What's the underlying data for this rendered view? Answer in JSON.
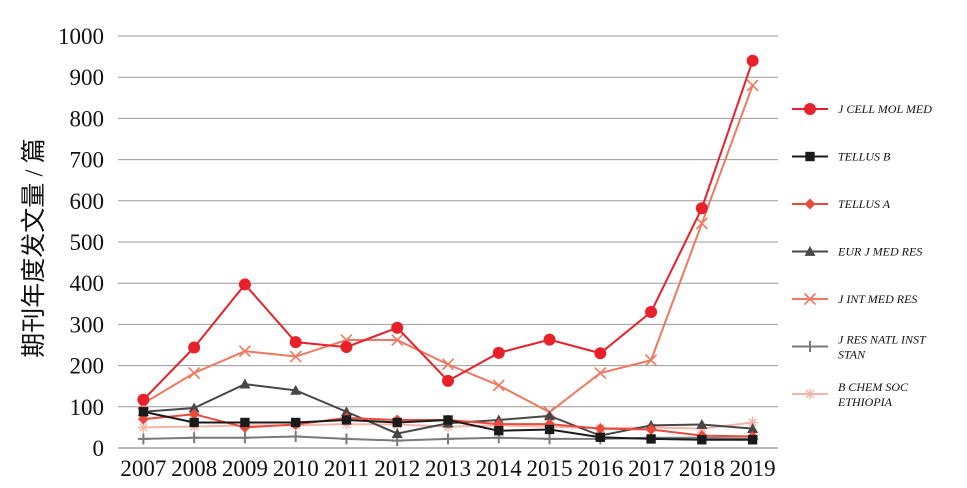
{
  "chart_data": {
    "type": "line",
    "ylabel": "期刊年度发文量 / 篇",
    "xlabel": "",
    "ylim": [
      0,
      1000
    ],
    "yticks": [
      0,
      100,
      200,
      300,
      400,
      500,
      600,
      700,
      800,
      900,
      1000
    ],
    "categories": [
      "2007",
      "2008",
      "2009",
      "2010",
      "2011",
      "2012",
      "2013",
      "2014",
      "2015",
      "2016",
      "2017",
      "2018",
      "2019"
    ],
    "grid": true,
    "legend_position": "right",
    "series": [
      {
        "name": "J CELL MOL MED",
        "color": "#e8202a",
        "marker": "circle",
        "values": [
          117,
          244,
          397,
          257,
          245,
          292,
          163,
          231,
          263,
          230,
          330,
          582,
          940
        ]
      },
      {
        "name": "TELLUS B",
        "color": "#1a1a1a",
        "marker": "square",
        "values": [
          88,
          62,
          62,
          62,
          68,
          62,
          68,
          42,
          45,
          26,
          22,
          20,
          20
        ]
      },
      {
        "name": "TELLUS A",
        "color": "#ea4a3e",
        "marker": "diamond",
        "values": [
          70,
          82,
          50,
          57,
          73,
          68,
          68,
          58,
          58,
          47,
          45,
          30,
          28
        ]
      },
      {
        "name": "EUR J MED RES",
        "color": "#474747",
        "marker": "triangle",
        "values": [
          88,
          97,
          155,
          140,
          88,
          35,
          60,
          68,
          78,
          30,
          55,
          57,
          47
        ]
      },
      {
        "name": "J INT MED RES",
        "color": "#f07860",
        "marker": "x",
        "values": [
          108,
          182,
          235,
          222,
          262,
          262,
          203,
          152,
          87,
          182,
          213,
          545,
          880
        ]
      },
      {
        "name": "J RES NATL INST STAN",
        "color": "#7a7a7a",
        "marker": "plus",
        "values": [
          22,
          25,
          25,
          28,
          22,
          18,
          22,
          25,
          22,
          22,
          25,
          25,
          22
        ]
      },
      {
        "name": "B CHEM SOC ETHIOPIA",
        "color": "#f6b3a8",
        "marker": "asterisk",
        "values": [
          50,
          52,
          55,
          55,
          58,
          57,
          52,
          55,
          52,
          48,
          50,
          47,
          62
        ]
      }
    ]
  }
}
